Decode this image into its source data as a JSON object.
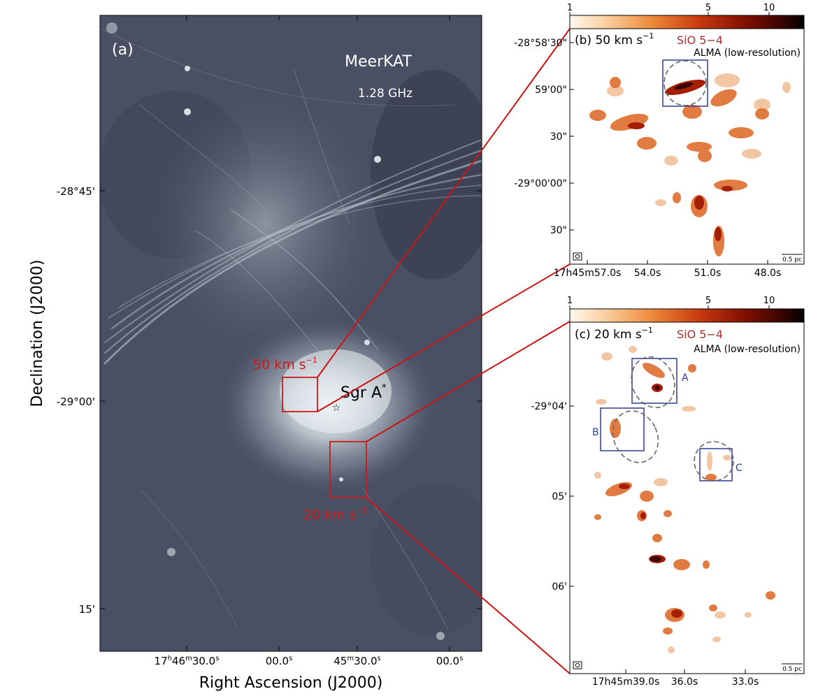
{
  "panel_a": {
    "label": "(a)",
    "telescope": "MeerKAT",
    "frequency": "1.28 GHz",
    "source_label": "Sgr A",
    "source_sup": "*",
    "box_50_label_main": "50 km s",
    "box_50_label_sup": "−1",
    "box_20_label_main": "20 km s",
    "box_20_label_sup": "−1",
    "yaxis_title": "Declination (J2000)",
    "xaxis_title": "Right Ascension (J2000)",
    "yticks": [
      "-28°45'",
      "-29°00'",
      "15'"
    ],
    "xticks": [
      {
        "base": "17",
        "h": "h",
        "m1": "46",
        "m": "m",
        "s1": "30.0",
        "s": "s"
      },
      {
        "base": "00.0",
        "s": "s"
      },
      {
        "base": "45",
        "m": "m",
        "s1": "30.0",
        "s": "s"
      },
      {
        "base": "00.0",
        "s": "s"
      }
    ],
    "colors": {
      "image_bg": "#4a5064",
      "highlight": "#dfe8ee",
      "box": "#d01818",
      "label": "#d01818"
    }
  },
  "panel_b": {
    "colorbar_ticks": [
      "1",
      "5",
      "10"
    ],
    "label_main": "(b) 50 km s",
    "label_sup": "−1",
    "line": "SiO 5−4",
    "instrument": "ALMA (low-resolution)",
    "yticks": [
      "-28°58'30\"",
      "59'00\"",
      "30\"",
      "-29°00'00\"",
      "30\""
    ],
    "xticks": [
      "17h45m57.0s",
      "54.0s",
      "51.0s",
      "48.0s"
    ],
    "scale_bar": "0.5 pc"
  },
  "panel_c": {
    "colorbar_ticks": [
      "1",
      "5",
      "10"
    ],
    "label_main": "(c) 20 km s",
    "label_sup": "−1",
    "line": "SiO 5−4",
    "instrument": "ALMA (low-resolution)",
    "region_labels": [
      "A",
      "B",
      "C"
    ],
    "yticks": [
      "-29°04'",
      "05'",
      "06'"
    ],
    "xticks": [
      "17h45m39.0s",
      "36.0s",
      "33.0s"
    ],
    "scale_bar": "0.5 pc"
  },
  "colors": {
    "line_label": "#a83232",
    "region_box": "#2f3a8f",
    "ellipse": "#666666",
    "connector": "#cc1414"
  }
}
